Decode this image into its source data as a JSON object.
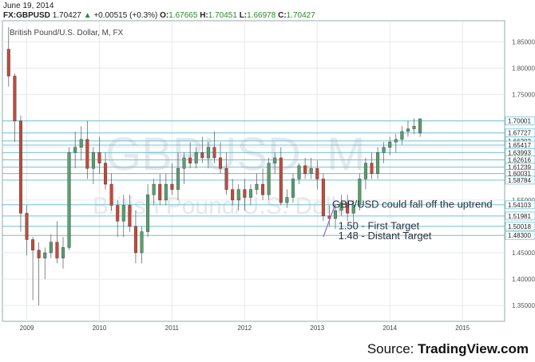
{
  "header": {
    "date": "June 19, 2014",
    "symbol": "FX:GBPUSD",
    "last": "1.70427",
    "change_arrow": "▲",
    "change": "+0.00515 (+0.3%)",
    "open_label": "O:",
    "open": "1.67665",
    "high_label": "H:",
    "high": "1.70451",
    "low_label": "L:",
    "low": "1.66978",
    "close_label": "C:",
    "close": "1.70427"
  },
  "source": {
    "prefix": "Source: ",
    "name": "TradingView.com"
  },
  "chart_data": {
    "type": "candlestick",
    "title": "British Pound/U.S. Dollar, M, FX",
    "watermark_symbol": "GBPUSD, M",
    "watermark_name": "British Pound/U.S. Dollar",
    "ylim": [
      1.32,
      1.89
    ],
    "y_ticks": [
      "1.85000",
      "1.80000",
      "1.75000",
      "1.70000",
      "1.65000",
      "1.60000",
      "1.55000",
      "1.50000",
      "1.45000",
      "1.40000",
      "1.35000"
    ],
    "x_ticks": [
      {
        "label": "2009",
        "index": 3
      },
      {
        "label": "2010",
        "index": 15
      },
      {
        "label": "2011",
        "index": 27
      },
      {
        "label": "2012",
        "index": 39
      },
      {
        "label": "2013",
        "index": 51
      },
      {
        "label": "2014",
        "index": 63
      },
      {
        "label": "2015",
        "index": 75
      }
    ],
    "x_slots": 83,
    "levels": [
      "1.70001",
      "1.67727",
      "1.66202",
      "1.65417",
      "1.63993",
      "1.62616",
      "1.61239",
      "1.60031",
      "1.58784",
      "1.54103",
      "1.51981",
      "1.50018",
      "1.48300"
    ],
    "annotations": [
      {
        "text": "GBP/USD could fall off the uptrend",
        "y": 1.543,
        "index": 54
      },
      {
        "text": "1.50 - First Target",
        "y": 1.502,
        "index": 55
      },
      {
        "text": "1.48 - Distant Target",
        "y": 1.483,
        "index": 55
      }
    ],
    "candles": [
      [
        1.836,
        1.878,
        1.765,
        1.785
      ],
      [
        1.785,
        1.79,
        1.66,
        1.7
      ],
      [
        1.7,
        1.71,
        1.49,
        1.525
      ],
      [
        1.525,
        1.54,
        1.445,
        1.475
      ],
      [
        1.475,
        1.48,
        1.36,
        1.455
      ],
      [
        1.455,
        1.47,
        1.35,
        1.44
      ],
      [
        1.44,
        1.46,
        1.4,
        1.45
      ],
      [
        1.45,
        1.485,
        1.44,
        1.47
      ],
      [
        1.47,
        1.51,
        1.43,
        1.44
      ],
      [
        1.44,
        1.48,
        1.42,
        1.46
      ],
      [
        1.46,
        1.65,
        1.455,
        1.64
      ],
      [
        1.64,
        1.68,
        1.61,
        1.65
      ],
      [
        1.65,
        1.69,
        1.625,
        1.665
      ],
      [
        1.665,
        1.7,
        1.59,
        1.61
      ],
      [
        1.61,
        1.65,
        1.58,
        1.64
      ],
      [
        1.64,
        1.67,
        1.6,
        1.62
      ],
      [
        1.62,
        1.64,
        1.57,
        1.58
      ],
      [
        1.58,
        1.6,
        1.53,
        1.54
      ],
      [
        1.54,
        1.55,
        1.48,
        1.51
      ],
      [
        1.51,
        1.56,
        1.48,
        1.54
      ],
      [
        1.54,
        1.56,
        1.49,
        1.5
      ],
      [
        1.5,
        1.53,
        1.43,
        1.45
      ],
      [
        1.45,
        1.5,
        1.43,
        1.49
      ],
      [
        1.49,
        1.58,
        1.48,
        1.56
      ],
      [
        1.56,
        1.59,
        1.54,
        1.58
      ],
      [
        1.58,
        1.6,
        1.54,
        1.55
      ],
      [
        1.55,
        1.6,
        1.54,
        1.58
      ],
      [
        1.58,
        1.62,
        1.56,
        1.57
      ],
      [
        1.57,
        1.64,
        1.55,
        1.61
      ],
      [
        1.61,
        1.64,
        1.58,
        1.63
      ],
      [
        1.63,
        1.66,
        1.61,
        1.62
      ],
      [
        1.62,
        1.65,
        1.61,
        1.64
      ],
      [
        1.64,
        1.67,
        1.62,
        1.63
      ],
      [
        1.63,
        1.66,
        1.61,
        1.65
      ],
      [
        1.65,
        1.68,
        1.62,
        1.63
      ],
      [
        1.63,
        1.66,
        1.6,
        1.61
      ],
      [
        1.61,
        1.64,
        1.56,
        1.57
      ],
      [
        1.57,
        1.59,
        1.54,
        1.55
      ],
      [
        1.55,
        1.58,
        1.53,
        1.57
      ],
      [
        1.57,
        1.59,
        1.53,
        1.555
      ],
      [
        1.555,
        1.58,
        1.54,
        1.57
      ],
      [
        1.57,
        1.6,
        1.56,
        1.58
      ],
      [
        1.58,
        1.61,
        1.55,
        1.56
      ],
      [
        1.56,
        1.63,
        1.55,
        1.62
      ],
      [
        1.62,
        1.64,
        1.6,
        1.63
      ],
      [
        1.63,
        1.65,
        1.54,
        1.545
      ],
      [
        1.545,
        1.57,
        1.535,
        1.555
      ],
      [
        1.555,
        1.6,
        1.545,
        1.59
      ],
      [
        1.59,
        1.62,
        1.58,
        1.615
      ],
      [
        1.615,
        1.63,
        1.59,
        1.6
      ],
      [
        1.6,
        1.63,
        1.59,
        1.61
      ],
      [
        1.61,
        1.625,
        1.57,
        1.59
      ],
      [
        1.59,
        1.6,
        1.51,
        1.52
      ],
      [
        1.52,
        1.54,
        1.5,
        1.515
      ],
      [
        1.515,
        1.54,
        1.495,
        1.53
      ],
      [
        1.53,
        1.56,
        1.52,
        1.545
      ],
      [
        1.545,
        1.56,
        1.51,
        1.525
      ],
      [
        1.525,
        1.55,
        1.505,
        1.54
      ],
      [
        1.54,
        1.6,
        1.53,
        1.59
      ],
      [
        1.59,
        1.63,
        1.57,
        1.62
      ],
      [
        1.62,
        1.64,
        1.59,
        1.6
      ],
      [
        1.6,
        1.65,
        1.59,
        1.64
      ],
      [
        1.64,
        1.66,
        1.62,
        1.65
      ],
      [
        1.65,
        1.67,
        1.635,
        1.66
      ],
      [
        1.66,
        1.675,
        1.64,
        1.665
      ],
      [
        1.665,
        1.69,
        1.655,
        1.68
      ],
      [
        1.68,
        1.7,
        1.67,
        1.685
      ],
      [
        1.685,
        1.705,
        1.675,
        1.69
      ],
      [
        1.677,
        1.705,
        1.67,
        1.704
      ]
    ]
  }
}
